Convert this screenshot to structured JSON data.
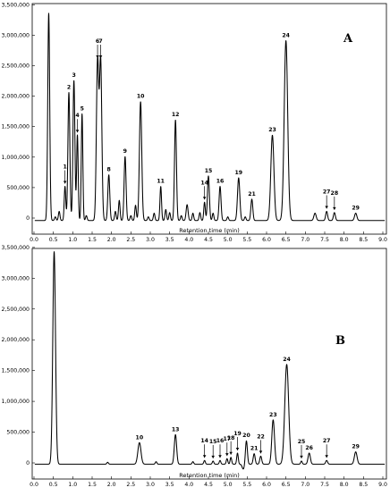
{
  "chart_data": [
    {
      "panel": "A",
      "type": "line",
      "xlabel": "Retention time (min)",
      "ylabel": "",
      "xlim": [
        0,
        9.1
      ],
      "ylim": [
        -300000,
        3500000
      ],
      "x_ticks": [
        "0.0",
        "0.5",
        "1.0",
        "1.5",
        "2.0",
        "2.5",
        "3.0",
        "3.5",
        "4.0",
        "4.5",
        "5.0",
        "5.5",
        "6.0",
        "6.5",
        "7.0",
        "7.5",
        "8.0",
        "8.5",
        "9.0"
      ],
      "y_ticks": [
        {
          "value": 0,
          "label": "0"
        },
        {
          "value": 500000,
          "label": "500,000"
        },
        {
          "value": 1000000,
          "label": "1,000,000"
        },
        {
          "value": 1500000,
          "label": "1,500,000"
        },
        {
          "value": 2000000,
          "label": "2,000,000"
        },
        {
          "value": 2500000,
          "label": "2,500,000"
        },
        {
          "value": 3000000,
          "label": "3,000,000"
        },
        {
          "value": 3500000,
          "label": "3,500,000"
        }
      ],
      "baseline": -40000,
      "peaks": [
        {
          "x": 0.38,
          "y": 3400000,
          "w": 0.025
        },
        {
          "x": 0.55,
          "y": 60000,
          "w": 0.02
        },
        {
          "x": 0.65,
          "y": 150000,
          "w": 0.02
        },
        {
          "x": 0.8,
          "y": 560000,
          "w": 0.02,
          "label": "1",
          "arrow": true
        },
        {
          "x": 0.9,
          "y": 2100000,
          "w": 0.025,
          "label": "2"
        },
        {
          "x": 1.03,
          "y": 2300000,
          "w": 0.025,
          "label": "3"
        },
        {
          "x": 1.12,
          "y": 1400000,
          "w": 0.02,
          "label": "4",
          "arrow": true
        },
        {
          "x": 1.24,
          "y": 1750000,
          "w": 0.02,
          "label": "5"
        },
        {
          "x": 1.35,
          "y": 80000,
          "w": 0.02
        },
        {
          "x": 1.64,
          "y": 2620000,
          "w": 0.03,
          "label": "6",
          "arrow": true
        },
        {
          "x": 1.72,
          "y": 2620000,
          "w": 0.03,
          "label": "7",
          "arrow": true
        },
        {
          "x": 1.93,
          "y": 750000,
          "w": 0.025,
          "label": "8"
        },
        {
          "x": 2.1,
          "y": 150000,
          "w": 0.02
        },
        {
          "x": 2.2,
          "y": 330000,
          "w": 0.02
        },
        {
          "x": 2.35,
          "y": 1050000,
          "w": 0.025,
          "label": "9"
        },
        {
          "x": 2.5,
          "y": 80000,
          "w": 0.02
        },
        {
          "x": 2.62,
          "y": 250000,
          "w": 0.02
        },
        {
          "x": 2.75,
          "y": 1950000,
          "w": 0.03,
          "label": "10"
        },
        {
          "x": 2.95,
          "y": 60000,
          "w": 0.02
        },
        {
          "x": 3.1,
          "y": 120000,
          "w": 0.02
        },
        {
          "x": 3.27,
          "y": 560000,
          "w": 0.02,
          "label": "11"
        },
        {
          "x": 3.4,
          "y": 180000,
          "w": 0.02
        },
        {
          "x": 3.5,
          "y": 130000,
          "w": 0.02
        },
        {
          "x": 3.65,
          "y": 1650000,
          "w": 0.025,
          "label": "12"
        },
        {
          "x": 3.8,
          "y": 80000,
          "w": 0.02
        },
        {
          "x": 3.95,
          "y": 260000,
          "w": 0.025
        },
        {
          "x": 4.1,
          "y": 120000,
          "w": 0.02
        },
        {
          "x": 4.28,
          "y": 130000,
          "w": 0.02
        },
        {
          "x": 4.4,
          "y": 300000,
          "w": 0.02,
          "label": "14",
          "arrow": true
        },
        {
          "x": 4.5,
          "y": 730000,
          "w": 0.025,
          "label": "15"
        },
        {
          "x": 4.62,
          "y": 120000,
          "w": 0.02
        },
        {
          "x": 4.8,
          "y": 560000,
          "w": 0.025,
          "label": "16"
        },
        {
          "x": 5.0,
          "y": 60000,
          "w": 0.02
        },
        {
          "x": 5.28,
          "y": 700000,
          "w": 0.03,
          "label": "19"
        },
        {
          "x": 5.45,
          "y": 60000,
          "w": 0.02
        },
        {
          "x": 5.62,
          "y": 350000,
          "w": 0.025,
          "label": "21"
        },
        {
          "x": 6.15,
          "y": 1400000,
          "w": 0.04,
          "label": "23"
        },
        {
          "x": 6.5,
          "y": 2950000,
          "w": 0.045,
          "label": "24"
        },
        {
          "x": 7.25,
          "y": 120000,
          "w": 0.03
        },
        {
          "x": 7.55,
          "y": 150000,
          "w": 0.025,
          "label": "27",
          "arrow": true
        },
        {
          "x": 7.75,
          "y": 130000,
          "w": 0.025,
          "label": "28",
          "arrow": true
        },
        {
          "x": 8.3,
          "y": 120000,
          "w": 0.03,
          "label": "29"
        }
      ]
    },
    {
      "panel": "B",
      "type": "line",
      "xlabel": "Retention time (min)",
      "ylabel": "",
      "xlim": [
        0,
        9.1
      ],
      "ylim": [
        -300000,
        3500000
      ],
      "x_ticks": [
        "0.0",
        "0.5",
        "1.0",
        "1.5",
        "2.0",
        "2.5",
        "3.0",
        "3.5",
        "4.0",
        "4.5",
        "5.0",
        "5.5",
        "6.0",
        "6.5",
        "7.0",
        "7.5",
        "8.0",
        "8.5",
        "9.0"
      ],
      "y_ticks": [
        {
          "value": 0,
          "label": "0"
        },
        {
          "value": 500000,
          "label": "500,000"
        },
        {
          "value": 1000000,
          "label": "1,000,000"
        },
        {
          "value": 1500000,
          "label": "1,500,000"
        },
        {
          "value": 2000000,
          "label": "2,000,000"
        },
        {
          "value": 2500000,
          "label": "2,500,000"
        },
        {
          "value": 3000000,
          "label": "3,000,000"
        },
        {
          "value": 3500000,
          "label": "3,500,000"
        }
      ],
      "baseline": -20000,
      "peaks": [
        {
          "x": 0.52,
          "y": 3450000,
          "w": 0.035
        },
        {
          "x": 1.9,
          "y": 30000,
          "w": 0.02
        },
        {
          "x": 2.72,
          "y": 350000,
          "w": 0.04,
          "label": "10"
        },
        {
          "x": 3.15,
          "y": 40000,
          "w": 0.02
        },
        {
          "x": 3.65,
          "y": 480000,
          "w": 0.03,
          "label": "13"
        },
        {
          "x": 4.1,
          "y": 40000,
          "w": 0.02
        },
        {
          "x": 4.4,
          "y": 60000,
          "w": 0.02,
          "label": "14",
          "arrow": true
        },
        {
          "x": 4.62,
          "y": 50000,
          "w": 0.02,
          "label": "15",
          "arrow": true
        },
        {
          "x": 4.8,
          "y": 60000,
          "w": 0.02,
          "label": "16",
          "arrow": true
        },
        {
          "x": 4.98,
          "y": 90000,
          "w": 0.02,
          "label": "17",
          "arrow": true
        },
        {
          "x": 5.08,
          "y": 110000,
          "w": 0.02,
          "label": "18",
          "arrow": true
        },
        {
          "x": 5.25,
          "y": 180000,
          "w": 0.02,
          "label": "19",
          "arrow": true
        },
        {
          "x": 5.4,
          "y": -80000,
          "w": 0.03
        },
        {
          "x": 5.48,
          "y": 380000,
          "w": 0.025,
          "label": "20"
        },
        {
          "x": 5.68,
          "y": 170000,
          "w": 0.025,
          "label": "21"
        },
        {
          "x": 5.85,
          "y": 130000,
          "w": 0.025,
          "label": "22",
          "arrow": true
        },
        {
          "x": 6.17,
          "y": 720000,
          "w": 0.035,
          "label": "23"
        },
        {
          "x": 6.52,
          "y": 1620000,
          "w": 0.05,
          "label": "24"
        },
        {
          "x": 6.9,
          "y": 50000,
          "w": 0.02,
          "label": "25",
          "arrow": true
        },
        {
          "x": 7.1,
          "y": 180000,
          "w": 0.03,
          "label": "26"
        },
        {
          "x": 7.55,
          "y": 60000,
          "w": 0.025,
          "label": "27",
          "arrow": true
        },
        {
          "x": 8.3,
          "y": 200000,
          "w": 0.035,
          "label": "29"
        }
      ]
    }
  ],
  "panels": {
    "a": {
      "letter": "A"
    },
    "b": {
      "letter": "B"
    }
  }
}
